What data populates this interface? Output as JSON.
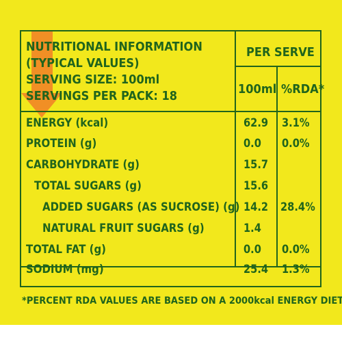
{
  "colors": {
    "background": "#f2e81c",
    "ink": "#20641c",
    "arrow": "#f08a26"
  },
  "header": {
    "line1": "NUTRITIONAL INFORMATION",
    "line2": "(TYPICAL VALUES)",
    "line3": "SERVING SIZE: 100ml",
    "line4": "SERVINGS PER PACK: 18",
    "per_serve": "PER SERVE",
    "col_100ml": "100ml",
    "col_rda": "%RDA*"
  },
  "rows": [
    {
      "label": "ENERGY (kcal)",
      "value": "62.9",
      "rda": "3.1%"
    },
    {
      "label": "PROTEIN (g)",
      "value": "0.0",
      "rda": "0.0%"
    },
    {
      "label": "CARBOHYDRATE (g)",
      "value": "15.7",
      "rda": ""
    },
    {
      "label": "TOTAL SUGARS (g)",
      "value": "15.6",
      "rda": ""
    },
    {
      "label": "ADDED SUGARS (AS SUCROSE) (g)",
      "value": "14.2",
      "rda": "28.4%"
    },
    {
      "label": "NATURAL FRUIT SUGARS (g)",
      "value": "1.4",
      "rda": ""
    },
    {
      "label": "TOTAL FAT (g)",
      "value": "0.0",
      "rda": "0.0%"
    },
    {
      "label": "SODIUM (mg)",
      "value": "25.4",
      "rda": "1.3%"
    }
  ],
  "footnote": "*PERCENT RDA VALUES ARE BASED ON A 2000kcal ENERGY DIET."
}
